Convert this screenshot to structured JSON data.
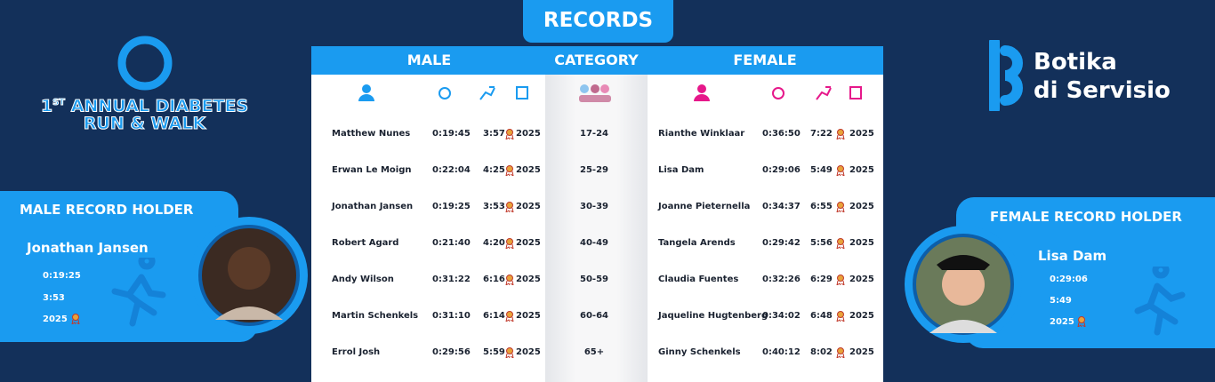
{
  "event": {
    "number": "1",
    "suffix": "ST",
    "line1": "ANNUAL DIABETES",
    "line2": "RUN & WALK"
  },
  "brand": {
    "line1": "Botika",
    "line2": "di Servisio"
  },
  "records": {
    "title": "RECORDS",
    "headers": {
      "male": "MALE",
      "category": "CATEGORY",
      "female": "FEMALE"
    },
    "rows": [
      {
        "male_name": "Matthew Nunes",
        "male_time": "0:19:45",
        "male_pace": "3:57",
        "male_year": "2025",
        "category": "17-24",
        "female_name": "Rianthe Winklaar",
        "female_time": "0:36:50",
        "female_pace": "7:22",
        "female_year": "2025"
      },
      {
        "male_name": "Erwan Le Moign",
        "male_time": "0:22:04",
        "male_pace": "4:25",
        "male_year": "2025",
        "category": "25-29",
        "female_name": "Lisa Dam",
        "female_time": "0:29:06",
        "female_pace": "5:49",
        "female_year": "2025"
      },
      {
        "male_name": "Jonathan Jansen",
        "male_time": "0:19:25",
        "male_pace": "3:53",
        "male_year": "2025",
        "category": "30-39",
        "female_name": "Joanne Pieternella",
        "female_time": "0:34:37",
        "female_pace": "6:55",
        "female_year": "2025"
      },
      {
        "male_name": "Robert Agard",
        "male_time": "0:21:40",
        "male_pace": "4:20",
        "male_year": "2025",
        "category": "40-49",
        "female_name": "Tangela Arends",
        "female_time": "0:29:42",
        "female_pace": "5:56",
        "female_year": "2025"
      },
      {
        "male_name": "Andy Wilson",
        "male_time": "0:31:22",
        "male_pace": "6:16",
        "male_year": "2025",
        "category": "50-59",
        "female_name": "Claudia Fuentes",
        "female_time": "0:32:26",
        "female_pace": "6:29",
        "female_year": "2025"
      },
      {
        "male_name": "Martin Schenkels",
        "male_time": "0:31:10",
        "male_pace": "6:14",
        "male_year": "2025",
        "category": "60-64",
        "female_name": "Jaqueline Hugtenberg",
        "female_time": "0:34:02",
        "female_pace": "6:48",
        "female_year": "2025"
      },
      {
        "male_name": "Errol Josh",
        "male_time": "0:29:56",
        "male_pace": "5:59",
        "male_year": "2025",
        "category": "65+",
        "female_name": "Ginny Schenkels",
        "female_time": "0:40:12",
        "female_pace": "8:02",
        "female_year": "2025"
      }
    ]
  },
  "male_holder": {
    "title": "MALE RECORD HOLDER",
    "name": "Jonathan Jansen",
    "time": "0:19:25",
    "pace": "3:53",
    "year": "2025"
  },
  "female_holder": {
    "title": "FEMALE RECORD HOLDER",
    "name": "Lisa Dam",
    "time": "0:29:06",
    "pace": "5:49",
    "year": "2025"
  }
}
